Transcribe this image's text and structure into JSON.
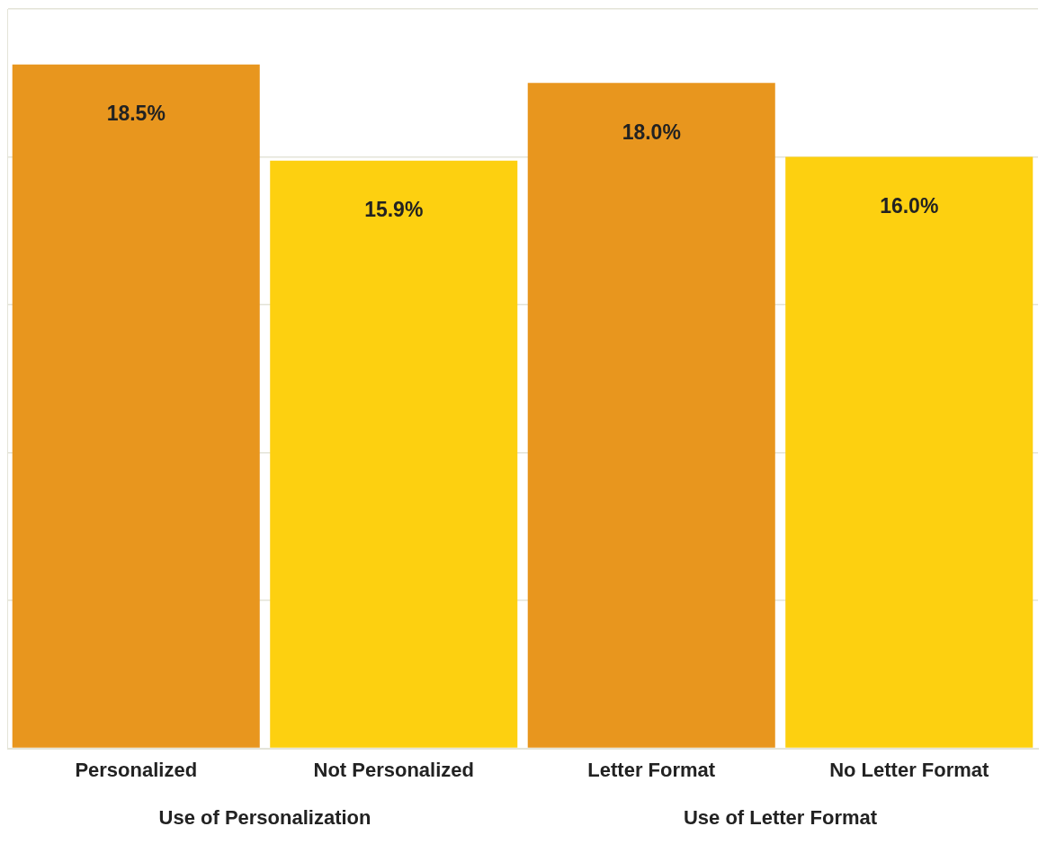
{
  "chart_data": {
    "type": "bar",
    "categories": [
      "Personalized",
      "Not Personalized",
      "Letter Format",
      "No Letter Format"
    ],
    "values": [
      18.5,
      15.9,
      18.0,
      16.0
    ],
    "colors": [
      "#e8961e",
      "#fdd010",
      "#e8961e",
      "#fdd010"
    ],
    "value_labels": [
      "18.5%",
      "15.9%",
      "18.0%",
      "16.0%"
    ],
    "annotations": [
      "Use of Personalization",
      "Use of Letter Format"
    ],
    "ylim": [
      0,
      20
    ],
    "yticks": [
      {
        "value": 0,
        "label": null
      },
      {
        "value": 4,
        "label": null
      },
      {
        "value": 8,
        "label": null
      },
      {
        "value": 12,
        "label": null
      },
      {
        "value": 16,
        "label": null
      },
      {
        "value": 20,
        "label": null
      }
    ],
    "tick_labels": "x",
    "grid": "y"
  }
}
